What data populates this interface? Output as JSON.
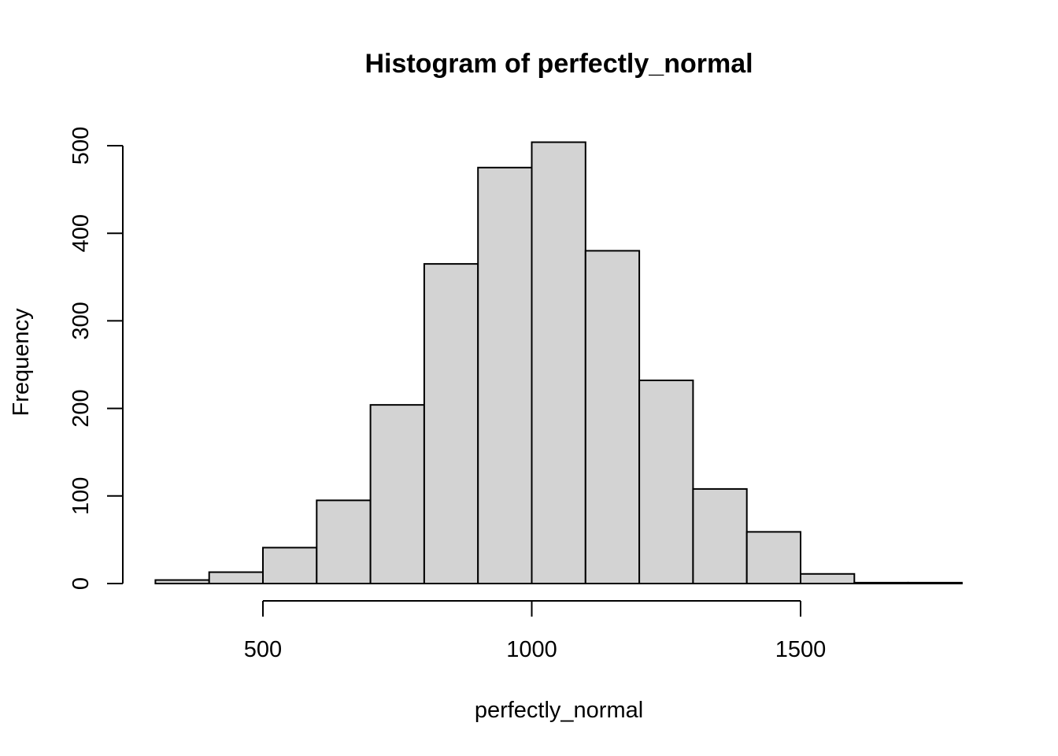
{
  "chart_data": {
    "type": "bar",
    "title": "Histogram of perfectly_normal",
    "xlabel": "perfectly_normal",
    "ylabel": "Frequency",
    "bins": [
      {
        "x0": 300,
        "x1": 400,
        "count": 4
      },
      {
        "x0": 400,
        "x1": 500,
        "count": 13
      },
      {
        "x0": 500,
        "x1": 600,
        "count": 41
      },
      {
        "x0": 600,
        "x1": 700,
        "count": 95
      },
      {
        "x0": 700,
        "x1": 800,
        "count": 204
      },
      {
        "x0": 800,
        "x1": 900,
        "count": 365
      },
      {
        "x0": 900,
        "x1": 1000,
        "count": 475
      },
      {
        "x0": 1000,
        "x1": 1100,
        "count": 504
      },
      {
        "x0": 1100,
        "x1": 1200,
        "count": 380
      },
      {
        "x0": 1200,
        "x1": 1300,
        "count": 232
      },
      {
        "x0": 1300,
        "x1": 1400,
        "count": 108
      },
      {
        "x0": 1400,
        "x1": 1500,
        "count": 59
      },
      {
        "x0": 1500,
        "x1": 1600,
        "count": 11
      },
      {
        "x0": 1600,
        "x1": 1700,
        "count": 1
      },
      {
        "x0": 1700,
        "x1": 1800,
        "count": 1
      }
    ],
    "xticks": [
      500,
      1000,
      1500
    ],
    "yticks": [
      0,
      100,
      200,
      300,
      400,
      500
    ],
    "xlim": [
      300,
      1800
    ],
    "ylim": [
      0,
      500
    ],
    "grid": false,
    "bar_color": "#d3d3d3"
  }
}
